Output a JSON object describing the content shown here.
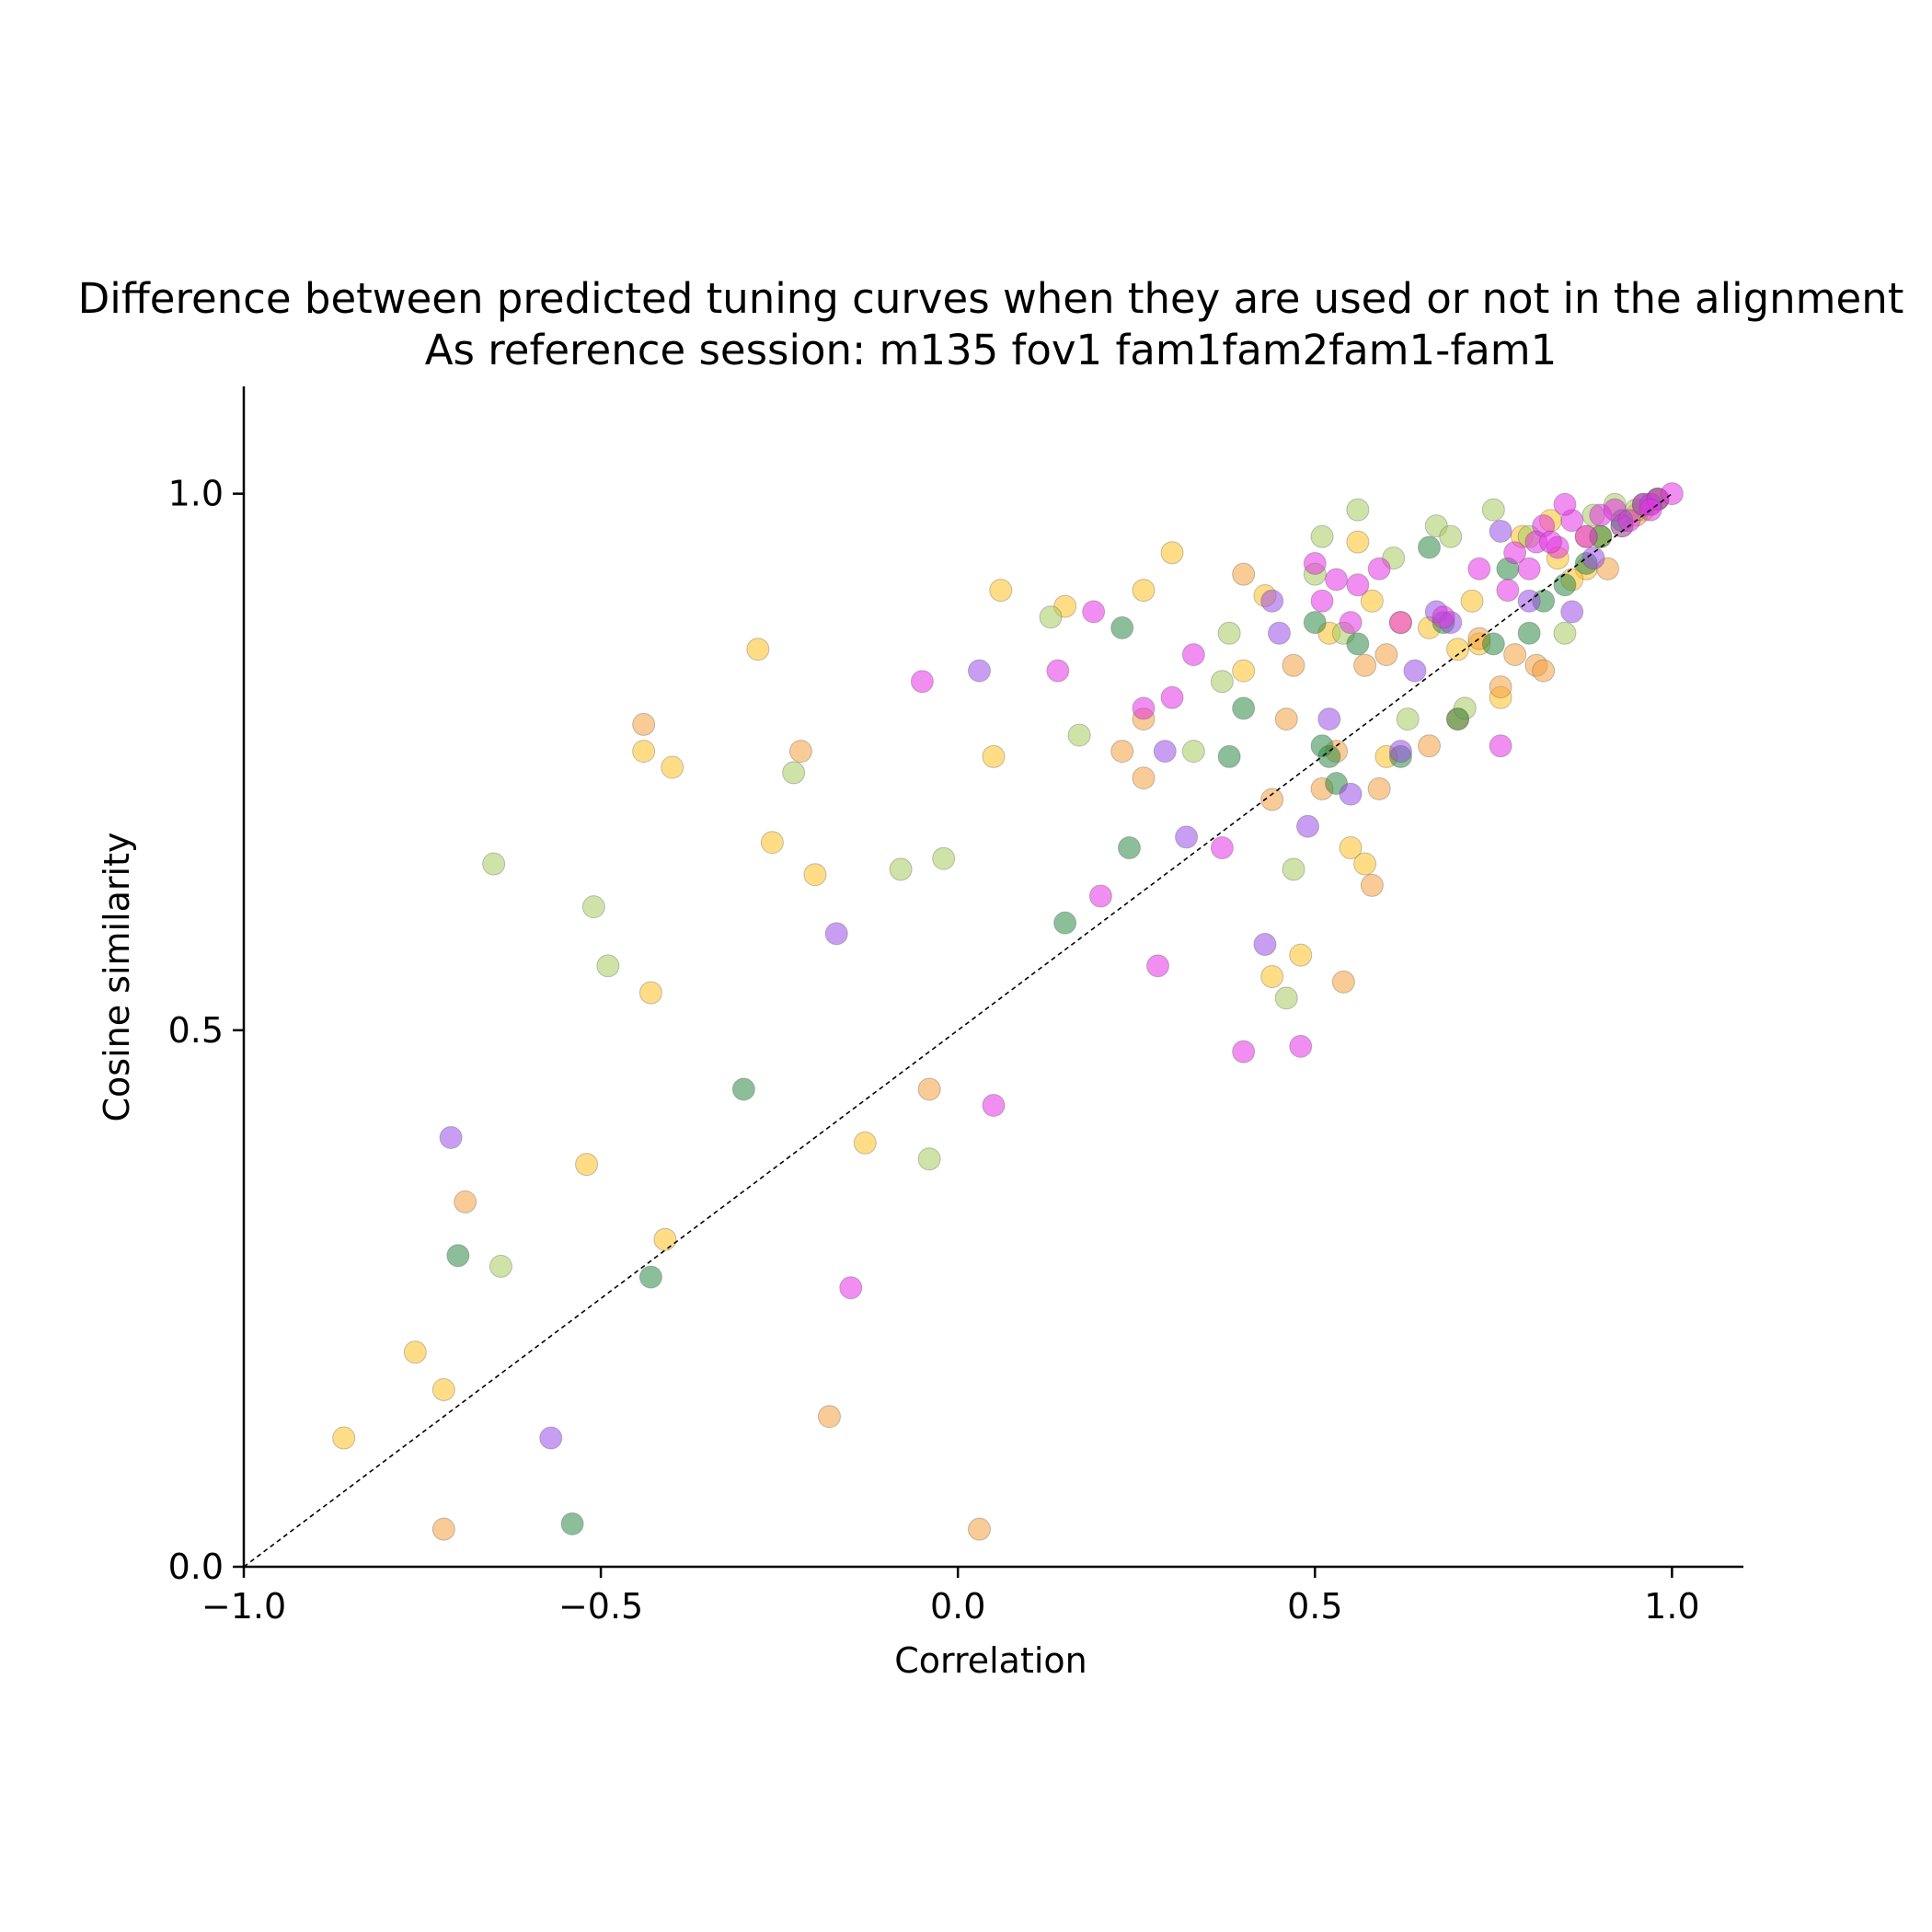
{
  "chart_data": {
    "type": "scatter",
    "title": "Difference between predicted tuning curves when they are used or not in the alignment",
    "subtitle": "As reference session: m135 fov1 fam1fam2fam1-fam1",
    "xlabel": "Correlation",
    "ylabel": "Cosine similarity",
    "xlim": [
      -1.0,
      1.1
    ],
    "ylim": [
      0.0,
      1.1
    ],
    "xticks": [
      -1.0,
      -0.5,
      0.0,
      0.5,
      1.0
    ],
    "yticks": [
      0.0,
      0.5,
      1.0
    ],
    "xtick_labels": [
      "−1.0",
      "−0.5",
      "0.0",
      "0.5",
      "1.0"
    ],
    "ytick_labels": [
      "0.0",
      "0.5",
      "1.0"
    ],
    "grid": false,
    "legend": "none",
    "reference_line": {
      "style": "dashed",
      "color": "#000000",
      "from": [
        -1.0,
        0.0
      ],
      "to": [
        1.0,
        1.0
      ]
    },
    "series": [
      {
        "color": "#ffc125",
        "points": [
          [
            -0.86,
            0.12
          ],
          [
            -0.76,
            0.2
          ],
          [
            -0.72,
            0.165
          ],
          [
            -0.52,
            0.375
          ],
          [
            -0.41,
            0.305
          ],
          [
            -0.43,
            0.535
          ],
          [
            -0.44,
            0.76
          ],
          [
            -0.4,
            0.745
          ],
          [
            -0.28,
            0.855
          ],
          [
            -0.26,
            0.675
          ],
          [
            -0.2,
            0.645
          ],
          [
            -0.13,
            0.395
          ],
          [
            0.05,
            0.755
          ],
          [
            0.06,
            0.91
          ],
          [
            0.15,
            0.895
          ],
          [
            0.26,
            0.91
          ],
          [
            0.3,
            0.945
          ],
          [
            0.4,
            0.835
          ],
          [
            0.43,
            0.905
          ],
          [
            0.44,
            0.55
          ],
          [
            0.48,
            0.57
          ],
          [
            0.52,
            0.87
          ],
          [
            0.55,
            0.67
          ],
          [
            0.56,
            0.955
          ],
          [
            0.57,
            0.655
          ],
          [
            0.58,
            0.9
          ],
          [
            0.6,
            0.755
          ],
          [
            0.62,
            0.88
          ],
          [
            0.66,
            0.875
          ],
          [
            0.7,
            0.855
          ],
          [
            0.72,
            0.9
          ],
          [
            0.73,
            0.86
          ],
          [
            0.76,
            0.81
          ],
          [
            0.79,
            0.96
          ],
          [
            0.84,
            0.94
          ],
          [
            0.88,
            0.93
          ],
          [
            0.9,
            0.96
          ],
          [
            0.93,
            0.97
          ],
          [
            0.96,
            0.985
          ],
          [
            0.98,
            0.995
          ],
          [
            0.86,
            0.92
          ],
          [
            0.83,
            0.975
          ]
        ]
      },
      {
        "color": "#f4a040",
        "points": [
          [
            -0.72,
            0.035
          ],
          [
            -0.69,
            0.34
          ],
          [
            -0.44,
            0.785
          ],
          [
            -0.22,
            0.76
          ],
          [
            -0.18,
            0.14
          ],
          [
            -0.04,
            0.445
          ],
          [
            0.03,
            0.035
          ],
          [
            0.23,
            0.76
          ],
          [
            0.26,
            0.735
          ],
          [
            0.26,
            0.79
          ],
          [
            0.4,
            0.925
          ],
          [
            0.44,
            0.715
          ],
          [
            0.46,
            0.79
          ],
          [
            0.47,
            0.84
          ],
          [
            0.51,
            0.725
          ],
          [
            0.53,
            0.76
          ],
          [
            0.54,
            0.545
          ],
          [
            0.57,
            0.84
          ],
          [
            0.58,
            0.635
          ],
          [
            0.59,
            0.725
          ],
          [
            0.6,
            0.85
          ],
          [
            0.66,
            0.765
          ],
          [
            0.7,
            0.79
          ],
          [
            0.73,
            0.865
          ],
          [
            0.76,
            0.82
          ],
          [
            0.78,
            0.85
          ],
          [
            0.81,
            0.84
          ],
          [
            0.82,
            0.835
          ],
          [
            0.88,
            0.96
          ],
          [
            0.91,
            0.93
          ],
          [
            0.95,
            0.98
          ],
          [
            0.97,
            0.99
          ]
        ]
      },
      {
        "color": "#a8cc60",
        "points": [
          [
            -0.65,
            0.655
          ],
          [
            -0.64,
            0.28
          ],
          [
            -0.51,
            0.615
          ],
          [
            -0.49,
            0.56
          ],
          [
            -0.23,
            0.74
          ],
          [
            -0.08,
            0.65
          ],
          [
            -0.04,
            0.38
          ],
          [
            -0.02,
            0.66
          ],
          [
            0.13,
            0.885
          ],
          [
            0.17,
            0.775
          ],
          [
            0.33,
            0.76
          ],
          [
            0.37,
            0.825
          ],
          [
            0.38,
            0.87
          ],
          [
            0.46,
            0.53
          ],
          [
            0.47,
            0.65
          ],
          [
            0.5,
            0.925
          ],
          [
            0.51,
            0.96
          ],
          [
            0.54,
            0.87
          ],
          [
            0.56,
            0.985
          ],
          [
            0.61,
            0.94
          ],
          [
            0.63,
            0.79
          ],
          [
            0.67,
            0.97
          ],
          [
            0.69,
            0.96
          ],
          [
            0.71,
            0.8
          ],
          [
            0.75,
            0.985
          ],
          [
            0.8,
            0.96
          ],
          [
            0.85,
            0.87
          ],
          [
            0.89,
            0.98
          ],
          [
            0.92,
            0.99
          ],
          [
            0.95,
            0.985
          ]
        ]
      },
      {
        "color": "#2e8b45",
        "points": [
          [
            -0.7,
            0.29
          ],
          [
            -0.54,
            0.04
          ],
          [
            -0.43,
            0.27
          ],
          [
            -0.3,
            0.445
          ],
          [
            0.15,
            0.6
          ],
          [
            0.23,
            0.875
          ],
          [
            0.24,
            0.67
          ],
          [
            0.38,
            0.755
          ],
          [
            0.4,
            0.8
          ],
          [
            0.5,
            0.88
          ],
          [
            0.51,
            0.765
          ],
          [
            0.52,
            0.755
          ],
          [
            0.53,
            0.73
          ],
          [
            0.56,
            0.86
          ],
          [
            0.62,
            0.755
          ],
          [
            0.66,
            0.95
          ],
          [
            0.68,
            0.88
          ],
          [
            0.7,
            0.79
          ],
          [
            0.75,
            0.86
          ],
          [
            0.77,
            0.93
          ],
          [
            0.8,
            0.87
          ],
          [
            0.82,
            0.9
          ],
          [
            0.85,
            0.915
          ],
          [
            0.88,
            0.935
          ],
          [
            0.9,
            0.96
          ],
          [
            0.93,
            0.975
          ],
          [
            0.96,
            0.99
          ],
          [
            0.98,
            0.995
          ]
        ]
      },
      {
        "color": "#9a4ee8",
        "points": [
          [
            -0.71,
            0.4
          ],
          [
            -0.57,
            0.12
          ],
          [
            -0.17,
            0.59
          ],
          [
            0.03,
            0.835
          ],
          [
            0.29,
            0.76
          ],
          [
            0.32,
            0.68
          ],
          [
            0.43,
            0.58
          ],
          [
            0.44,
            0.9
          ],
          [
            0.45,
            0.87
          ],
          [
            0.49,
            0.69
          ],
          [
            0.52,
            0.79
          ],
          [
            0.55,
            0.72
          ],
          [
            0.62,
            0.76
          ],
          [
            0.64,
            0.835
          ],
          [
            0.67,
            0.89
          ],
          [
            0.69,
            0.88
          ],
          [
            0.76,
            0.965
          ],
          [
            0.8,
            0.9
          ],
          [
            0.86,
            0.89
          ],
          [
            0.89,
            0.94
          ],
          [
            0.93,
            0.97
          ],
          [
            0.97,
            0.99
          ]
        ]
      },
      {
        "color": "#e632e6",
        "points": [
          [
            -0.05,
            0.825
          ],
          [
            -0.15,
            0.26
          ],
          [
            0.05,
            0.43
          ],
          [
            0.14,
            0.835
          ],
          [
            0.19,
            0.89
          ],
          [
            0.2,
            0.625
          ],
          [
            0.26,
            0.8
          ],
          [
            0.28,
            0.56
          ],
          [
            0.3,
            0.81
          ],
          [
            0.33,
            0.85
          ],
          [
            0.37,
            0.67
          ],
          [
            0.4,
            0.48
          ],
          [
            0.48,
            0.485
          ],
          [
            0.5,
            0.935
          ],
          [
            0.51,
            0.9
          ],
          [
            0.53,
            0.92
          ],
          [
            0.55,
            0.88
          ],
          [
            0.56,
            0.915
          ],
          [
            0.59,
            0.93
          ],
          [
            0.62,
            0.88
          ],
          [
            0.68,
            0.885
          ],
          [
            0.73,
            0.93
          ],
          [
            0.76,
            0.765
          ],
          [
            0.78,
            0.945
          ],
          [
            0.8,
            0.93
          ],
          [
            0.82,
            0.97
          ],
          [
            0.84,
            0.95
          ],
          [
            0.86,
            0.975
          ],
          [
            0.88,
            0.96
          ],
          [
            0.9,
            0.98
          ],
          [
            0.92,
            0.985
          ],
          [
            0.94,
            0.975
          ],
          [
            0.96,
            0.99
          ],
          [
            0.98,
            0.995
          ],
          [
            1.0,
            1.0
          ],
          [
            0.97,
            0.985
          ],
          [
            0.85,
            0.99
          ],
          [
            0.81,
            0.955
          ],
          [
            0.77,
            0.91
          ],
          [
            0.83,
            0.955
          ]
        ]
      }
    ]
  }
}
